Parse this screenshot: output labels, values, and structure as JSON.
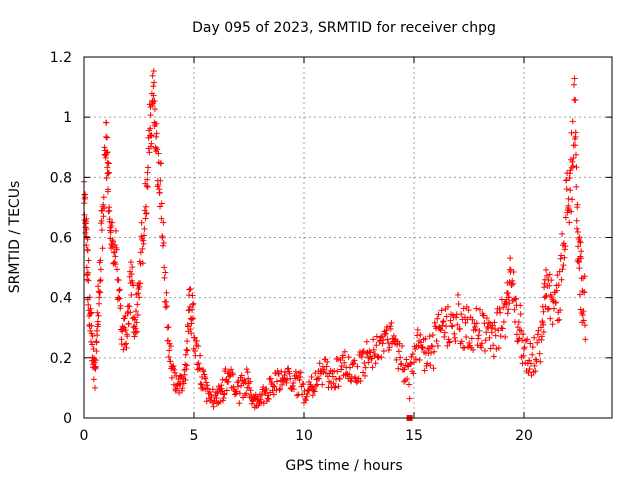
{
  "chart_data": {
    "type": "scatter",
    "title": "Day 095 of 2023, SRMTID for receiver chpg",
    "xlabel": "GPS time / hours",
    "ylabel": "SRMTID / TECUs",
    "xlim": [
      0,
      24
    ],
    "ylim": [
      0,
      1.2
    ],
    "xticks": [
      0,
      5,
      10,
      15,
      20
    ],
    "xtick_labels": [
      "0",
      "5",
      "10",
      "15",
      "20"
    ],
    "yticks": [
      0,
      0.2,
      0.4,
      0.6,
      0.8,
      1,
      1.2
    ],
    "ytick_labels": [
      "0",
      "0.2",
      "0.4",
      "0.6",
      "0.8",
      "1",
      "1.2"
    ],
    "grid": true,
    "marker": "+",
    "color": "#ff0000",
    "series": [
      {
        "name": "SRMTID",
        "envelope_x": [
          0,
          0.1,
          0.2,
          0.35,
          0.5,
          0.65,
          0.8,
          1.0,
          1.1,
          1.25,
          1.45,
          1.7,
          1.95,
          2.15,
          2.35,
          2.55,
          2.8,
          3.0,
          3.15,
          3.3,
          3.5,
          3.75,
          4.0,
          4.3,
          4.6,
          4.8,
          5.0,
          5.3,
          5.6,
          6.0,
          6.3,
          6.6,
          7.0,
          7.4,
          7.7,
          8.0,
          8.4,
          8.8,
          9.2,
          9.6,
          10.0,
          10.4,
          10.8,
          11.2,
          11.6,
          12.0,
          12.4,
          12.8,
          13.2,
          13.6,
          14.0,
          14.4,
          14.8,
          15.2,
          15.6,
          16.0,
          16.4,
          16.8,
          17.2,
          17.6,
          18.0,
          18.4,
          18.8,
          19.2,
          19.4,
          19.7,
          20.0,
          20.4,
          20.8,
          21.0,
          21.3,
          21.6,
          21.9,
          22.1,
          22.3,
          22.45,
          22.6,
          22.8
        ],
        "envelope_y": [
          0.76,
          0.6,
          0.45,
          0.25,
          0.15,
          0.4,
          0.6,
          0.92,
          0.78,
          0.6,
          0.55,
          0.3,
          0.28,
          0.45,
          0.3,
          0.5,
          0.7,
          0.95,
          1.1,
          0.9,
          0.75,
          0.35,
          0.15,
          0.1,
          0.15,
          0.38,
          0.3,
          0.15,
          0.08,
          0.06,
          0.1,
          0.15,
          0.08,
          0.12,
          0.06,
          0.07,
          0.1,
          0.12,
          0.14,
          0.12,
          0.1,
          0.12,
          0.15,
          0.14,
          0.15,
          0.18,
          0.15,
          0.2,
          0.22,
          0.25,
          0.28,
          0.2,
          0.12,
          0.25,
          0.2,
          0.25,
          0.3,
          0.35,
          0.3,
          0.28,
          0.3,
          0.25,
          0.3,
          0.35,
          0.5,
          0.35,
          0.22,
          0.2,
          0.25,
          0.45,
          0.38,
          0.4,
          0.7,
          0.75,
          1.0,
          0.6,
          0.45,
          0.35
        ],
        "spread": [
          0.04,
          0.1,
          0.1,
          0.08,
          0.05,
          0.1,
          0.12,
          0.08,
          0.1,
          0.06,
          0.08,
          0.07,
          0.06,
          0.1,
          0.08,
          0.1,
          0.1,
          0.12,
          0.08,
          0.1,
          0.1,
          0.08,
          0.04,
          0.03,
          0.04,
          0.1,
          0.08,
          0.05,
          0.03,
          0.03,
          0.05,
          0.04,
          0.04,
          0.05,
          0.03,
          0.03,
          0.04,
          0.04,
          0.03,
          0.04,
          0.05,
          0.05,
          0.05,
          0.05,
          0.05,
          0.06,
          0.05,
          0.06,
          0.05,
          0.05,
          0.04,
          0.07,
          0.06,
          0.06,
          0.06,
          0.08,
          0.08,
          0.09,
          0.08,
          0.08,
          0.08,
          0.07,
          0.08,
          0.09,
          0.06,
          0.1,
          0.07,
          0.06,
          0.07,
          0.09,
          0.09,
          0.08,
          0.12,
          0.12,
          0.15,
          0.12,
          0.12,
          0.1
        ],
        "points_per_segment": 14
      }
    ],
    "annotation": {
      "x": 14.8,
      "y": 0,
      "marker": "square"
    }
  }
}
